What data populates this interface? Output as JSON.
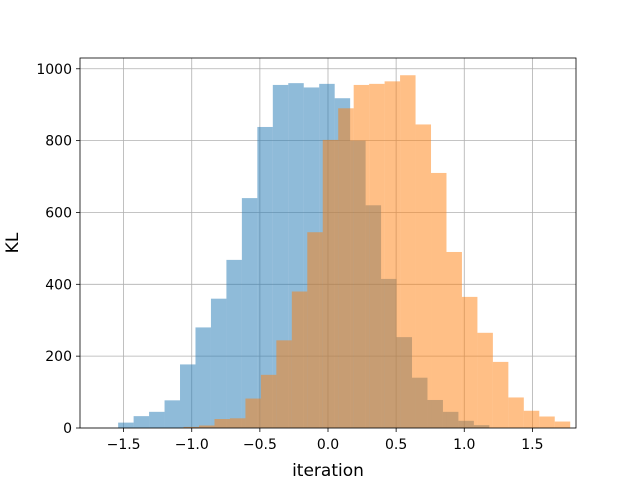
{
  "chart_data": {
    "type": "bar",
    "title": "",
    "xlabel": "iteration",
    "ylabel": "KL",
    "xlim": [
      -1.82,
      1.82
    ],
    "ylim": [
      0,
      1030
    ],
    "xticks": [
      -1.5,
      -1.0,
      -0.5,
      0.0,
      0.5,
      1.0,
      1.5
    ],
    "xtick_labels": [
      "−1.5",
      "−1.0",
      "−0.5",
      "0.0",
      "0.5",
      "1.0",
      "1.5"
    ],
    "yticks": [
      0,
      200,
      400,
      600,
      800,
      1000
    ],
    "ytick_labels": [
      "0",
      "200",
      "400",
      "600",
      "800",
      "1000"
    ],
    "grid": true,
    "legend": "none",
    "alpha": 0.5,
    "series": [
      {
        "color": "#1f77b4",
        "bin_start": -1.54,
        "bin_width": 0.1135,
        "counts": [
          15,
          33,
          45,
          77,
          177,
          280,
          360,
          468,
          640,
          838,
          955,
          960,
          948,
          958,
          918,
          800,
          620,
          415,
          253,
          140,
          78,
          45,
          20,
          8
        ]
      },
      {
        "color": "#ff7f0e",
        "bin_start": -1.06,
        "bin_width": 0.1135,
        "counts": [
          3,
          7,
          25,
          27,
          82,
          148,
          244,
          380,
          545,
          802,
          890,
          955,
          958,
          965,
          982,
          845,
          710,
          490,
          365,
          265,
          184,
          85,
          48,
          32,
          18
        ]
      }
    ]
  }
}
